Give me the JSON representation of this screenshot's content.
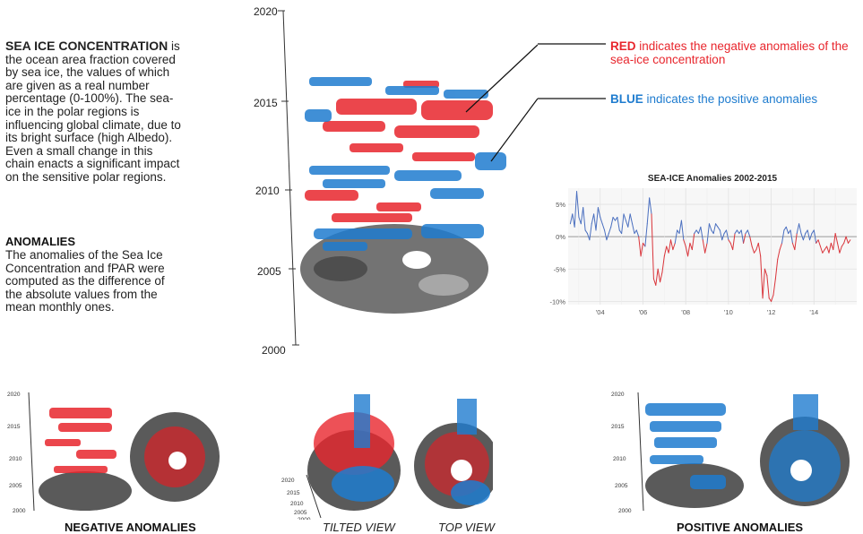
{
  "intro": {
    "title": "SEA ICE CONCENTRATION",
    "body": " is the ocean area fraction covered by sea ice, the values of which are given as a real number percentage (0-100%). The sea-ice in the polar regions is influencing global climate, due to its bright surface (high Albedo). Even a small change in this chain enacts a significant impact on the sensitive polar regions."
  },
  "anomalies_section": {
    "title": "ANOMALIES",
    "body": "The anomalies of the Sea Ice Concentration and fPAR were computed as the difference of the absolute values from the mean monthly ones."
  },
  "legend": {
    "red_keyword": "RED",
    "red_text": " indicates the negative anomalies of the sea-ice concentration",
    "blue_keyword": "BLUE",
    "blue_text": " indicates the positive anomalies"
  },
  "main_axis": {
    "ticks": [
      "2020",
      "2015",
      "2010",
      "2005",
      "2000"
    ]
  },
  "small_axis_ticks": [
    "2020",
    "2015",
    "2010",
    "2005",
    "2000"
  ],
  "captions": {
    "negative": "NEGATIVE ANOMALIES",
    "tilted": "TILTED VIEW",
    "top": "TOP VIEW",
    "positive": "POSITIVE ANOMALIES"
  },
  "colors": {
    "negative": "#e8262d",
    "positive": "#1f7ccf",
    "ice": "#555555"
  },
  "chart_data": {
    "type": "line",
    "title": "SEA-ICE Anomalies 2002-2015",
    "xlabel": "",
    "ylabel": "",
    "x_tick_labels": [
      "'04",
      "'06",
      "'08",
      "'10",
      "'12",
      "'14"
    ],
    "y_tick_labels": [
      "5%",
      "0%",
      "-5%",
      "-10%"
    ],
    "xlim": [
      2002.5,
      2016.0
    ],
    "ylim": [
      -10.5,
      7.5
    ],
    "grid": true,
    "positive_color": "#4a6fbf",
    "negative_color": "#d9343a",
    "series": [
      {
        "x": [
          2002.6,
          2002.7,
          2002.8,
          2002.9,
          2003.0,
          2003.1,
          2003.2,
          2003.3,
          2003.4,
          2003.5,
          2003.6,
          2003.7,
          2003.8,
          2003.9,
          2004.0,
          2004.1,
          2004.2,
          2004.3,
          2004.4,
          2004.5,
          2004.6,
          2004.7,
          2004.8,
          2004.9,
          2005.0,
          2005.1,
          2005.2,
          2005.3,
          2005.4,
          2005.5,
          2005.6,
          2005.7,
          2005.8,
          2005.9,
          2006.0,
          2006.1,
          2006.2,
          2006.3,
          2006.4,
          2006.5,
          2006.6,
          2006.7,
          2006.8,
          2006.9,
          2007.0,
          2007.1,
          2007.2,
          2007.3,
          2007.4,
          2007.5,
          2007.6,
          2007.7,
          2007.8,
          2007.9,
          2008.0,
          2008.1,
          2008.2,
          2008.3,
          2008.4,
          2008.5,
          2008.6,
          2008.7,
          2008.8,
          2008.9,
          2009.0,
          2009.1,
          2009.2,
          2009.3,
          2009.4,
          2009.5,
          2009.6,
          2009.7,
          2009.8,
          2009.9,
          2010.0,
          2010.1,
          2010.2,
          2010.3,
          2010.4,
          2010.5,
          2010.6,
          2010.7,
          2010.8,
          2010.9,
          2011.0,
          2011.1,
          2011.2,
          2011.3,
          2011.4,
          2011.5,
          2011.6,
          2011.7,
          2011.8,
          2011.9,
          2012.0,
          2012.1,
          2012.2,
          2012.3,
          2012.4,
          2012.5,
          2012.6,
          2012.7,
          2012.8,
          2012.9,
          2013.0,
          2013.1,
          2013.2,
          2013.3,
          2013.4,
          2013.5,
          2013.6,
          2013.7,
          2013.8,
          2013.9,
          2014.0,
          2014.1,
          2014.2,
          2014.3,
          2014.4,
          2014.5,
          2014.6,
          2014.7,
          2014.8,
          2014.9,
          2015.0,
          2015.1,
          2015.2,
          2015.3,
          2015.4,
          2015.5,
          2015.6,
          2015.7
        ],
        "y": [
          2.0,
          3.5,
          1.5,
          7.0,
          3.0,
          2.0,
          4.5,
          1.0,
          0.5,
          -0.5,
          2.0,
          3.5,
          1.0,
          4.5,
          3.0,
          2.0,
          1.0,
          -0.5,
          0.5,
          1.5,
          3.0,
          2.5,
          3.0,
          1.0,
          0.5,
          3.5,
          2.5,
          1.5,
          3.5,
          2.0,
          0.5,
          1.0,
          0.0,
          -3.0,
          -1.0,
          -1.5,
          2.0,
          6.0,
          3.5,
          -6.5,
          -7.5,
          -5.0,
          -7.0,
          -5.5,
          -3.0,
          -1.5,
          -2.5,
          -0.5,
          -2.0,
          -1.0,
          1.0,
          0.5,
          2.5,
          -0.5,
          -1.5,
          -3.0,
          -1.0,
          -2.0,
          0.5,
          1.0,
          0.5,
          1.5,
          -0.5,
          -2.5,
          -1.0,
          2.0,
          1.0,
          0.5,
          2.0,
          1.5,
          1.0,
          -0.5,
          0.5,
          1.0,
          -0.5,
          -1.0,
          -2.0,
          0.5,
          1.0,
          0.5,
          1.0,
          -1.0,
          0.5,
          1.0,
          0.0,
          -1.5,
          -2.5,
          -2.0,
          -1.0,
          -3.0,
          -9.5,
          -5.0,
          -6.0,
          -9.5,
          -10.0,
          -9.0,
          -6.5,
          -3.5,
          -2.0,
          -1.0,
          1.0,
          1.5,
          0.5,
          1.0,
          -1.0,
          -2.0,
          0.5,
          2.0,
          0.5,
          -0.5,
          0.5,
          1.0,
          -0.5,
          0.5,
          1.0,
          -1.0,
          -0.5,
          -1.5,
          -2.5,
          -2.0,
          -1.5,
          -2.5,
          -1.0,
          -2.0,
          0.5,
          -1.0,
          -2.5,
          -1.5,
          -1.0,
          0.0,
          -1.0,
          -0.5
        ]
      }
    ]
  }
}
